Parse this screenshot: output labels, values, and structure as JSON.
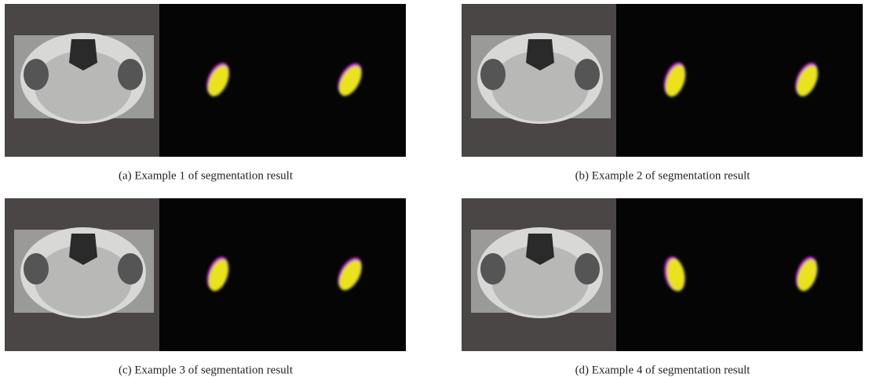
{
  "figure": {
    "panels": [
      {
        "caption": "(a) Example 1 of segmentation result"
      },
      {
        "caption": "(b) Example 2 of segmentation result"
      },
      {
        "caption": "(c) Example 3 of segmentation result"
      },
      {
        "caption": "(d) Example 4 of segmentation result"
      }
    ]
  }
}
